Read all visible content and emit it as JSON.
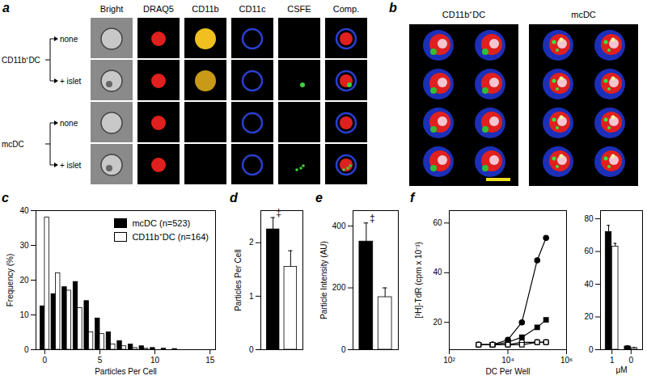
{
  "figure": {
    "panel_a": {
      "letter": "a",
      "columns": [
        "Bright",
        "DRAQ5",
        "CD11b",
        "CD11c",
        "CSFE",
        "Comp."
      ],
      "groups": [
        {
          "label": "CD11b⁺DC",
          "rows": [
            "none",
            "+ islet"
          ]
        },
        {
          "label": "mcDC",
          "rows": [
            "none",
            "+ islet"
          ]
        }
      ]
    },
    "panel_b": {
      "letter": "b",
      "labels": [
        "CD11b⁺DC",
        "mcDC"
      ]
    }
  },
  "chart_data": [
    {
      "panel": "c",
      "type": "bar",
      "x": [
        0,
        1,
        2,
        3,
        4,
        5,
        6,
        7,
        8,
        9,
        10,
        11,
        12
      ],
      "series": [
        {
          "name": "mcDC (n=523)",
          "color": "#000000",
          "values": [
            12.5,
            16,
            18,
            19.5,
            14,
            9,
            5,
            2.5,
            1.5,
            1,
            0.5,
            0.3,
            0.2
          ]
        },
        {
          "name": "CD11b⁺DC (n=164)",
          "color": "#ffffff",
          "values": [
            38,
            22,
            17,
            12,
            5,
            4.5,
            1.5,
            1,
            0.5,
            0.3,
            0,
            0,
            0
          ]
        }
      ],
      "xlim": [
        -0.8,
        15.5
      ],
      "xticks": [
        0,
        5,
        10,
        15
      ],
      "ylim": [
        0,
        40
      ],
      "yticks": [
        0,
        10,
        20,
        30,
        40
      ],
      "xlabel": "Particles Per Cell",
      "ylabel": "Frequency (%)",
      "legend": "top-right"
    },
    {
      "panel": "d",
      "type": "bar",
      "categories": [
        null,
        null
      ],
      "values": [
        2.25,
        1.55
      ],
      "errors": [
        0.22,
        0.3
      ],
      "colors": [
        "#000000",
        "#ffffff"
      ],
      "annotations": [
        "‡",
        null
      ],
      "ylim": [
        0,
        2.6
      ],
      "yticks": [
        0,
        1,
        2
      ],
      "ylabel": "Particles Per Cell",
      "tick_labels": "y"
    },
    {
      "panel": "e",
      "type": "bar",
      "categories": [
        null,
        null
      ],
      "values": [
        350,
        170
      ],
      "errors": [
        60,
        30
      ],
      "colors": [
        "#000000",
        "#ffffff"
      ],
      "annotations": [
        "‡",
        null
      ],
      "ylim": [
        0,
        450
      ],
      "yticks": [
        0,
        200,
        400
      ],
      "ylabel": "Particle Intensity (AU)",
      "tick_labels": "y"
    },
    {
      "panel": "f",
      "type": "line",
      "log": "x",
      "x": [
        1000,
        3000,
        10000,
        30000,
        100000,
        200000
      ],
      "series": [
        {
          "marker": "circle",
          "color": "#000000",
          "values": [
            11,
            11,
            13,
            20,
            45,
            54
          ]
        },
        {
          "marker": "square",
          "color": "#000000",
          "values": [
            11,
            11,
            12,
            14,
            18,
            21
          ]
        },
        {
          "marker": "circle-open",
          "color": "#000000",
          "values": [
            11,
            11,
            11,
            12,
            12,
            12
          ]
        },
        {
          "marker": "square-open",
          "color": "#000000",
          "values": [
            11,
            11,
            11,
            11,
            12,
            12
          ]
        }
      ],
      "xlim": [
        100,
        1000000
      ],
      "xticks": [
        {
          "value": 100,
          "label": "10²"
        },
        {
          "value": 10000,
          "label": "10⁴"
        },
        {
          "value": 1000000,
          "label": "10⁶"
        }
      ],
      "ylim": [
        9,
        65
      ],
      "yticks": [
        20,
        40,
        60
      ],
      "xlabel": "DC Per Well",
      "ylabel": "[³H]-TdR (cpm x 10⁻³)"
    },
    {
      "type": "bar",
      "categories": [
        "1",
        "0"
      ],
      "series": [
        {
          "color": "#000000",
          "values": [
            72,
            2
          ],
          "errors": [
            4,
            0.5
          ]
        },
        {
          "color": "#ffffff",
          "values": [
            63,
            1
          ],
          "errors": [
            2,
            0.3
          ]
        }
      ],
      "ylim": [
        0,
        85
      ],
      "yticks": [
        0,
        20,
        40,
        60,
        80
      ],
      "xlabel": "μM"
    }
  ]
}
